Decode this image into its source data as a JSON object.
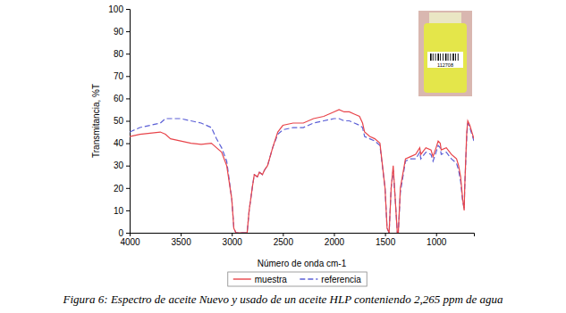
{
  "chart_data": {
    "type": "line",
    "title": "Figura 6: Espectro de aceite Nuevo y usado de un aceite HLP conteniendo 2,265 ppm de agua",
    "x_label": "Número de onda cm-1",
    "y_label": "Transmitancia, %T",
    "annotations": [
      {
        "text": "112708"
      }
    ],
    "x": [
      4000,
      3900,
      3800,
      3700,
      3650,
      3600,
      3500,
      3400,
      3300,
      3200,
      3150,
      3100,
      3050,
      3000,
      2980,
      2960,
      2850,
      2830,
      2800,
      2780,
      2750,
      2730,
      2700,
      2680,
      2650,
      2600,
      2550,
      2500,
      2400,
      2300,
      2200,
      2100,
      2000,
      1950,
      1900,
      1850,
      1800,
      1750,
      1720,
      1700,
      1650,
      1600,
      1550,
      1500,
      1480,
      1460,
      1440,
      1420,
      1400,
      1380,
      1370,
      1350,
      1300,
      1250,
      1200,
      1160,
      1150,
      1100,
      1050,
      1030,
      1000,
      980,
      960,
      950,
      900,
      850,
      800,
      780,
      760,
      740,
      725,
      720,
      700,
      690,
      670,
      650,
      630
    ],
    "series": [
      {
        "name": "muestra",
        "color": "#e8444a",
        "line_style": "solid",
        "values": [
          43,
          44,
          44.5,
          45,
          44,
          42,
          41,
          40,
          39.5,
          40,
          38,
          36,
          30,
          15,
          2,
          0,
          0,
          10,
          20,
          26,
          25,
          27,
          26,
          28,
          30,
          38,
          45,
          48,
          49,
          49,
          51,
          52,
          54,
          55,
          54,
          54,
          53,
          52,
          49,
          45,
          43,
          42,
          40,
          20,
          2,
          0,
          20,
          30,
          15,
          0,
          0,
          20,
          33,
          34,
          35,
          38,
          35,
          38,
          37,
          34,
          38,
          41,
          40,
          37,
          38,
          35,
          33,
          30,
          25,
          15,
          10,
          20,
          45,
          50,
          48,
          45,
          42
        ]
      },
      {
        "name": "referencia",
        "color": "#5b5fd6",
        "line_style": "dashed",
        "values": [
          45,
          47,
          48,
          49,
          51,
          51,
          51,
          50,
          49,
          47,
          42,
          38,
          32,
          15,
          2,
          0,
          0,
          10,
          20,
          26,
          25,
          27,
          26,
          28,
          30,
          38,
          44,
          46,
          47,
          47,
          49,
          50,
          51,
          51,
          50,
          50,
          49,
          48,
          47,
          43,
          42,
          41,
          39,
          20,
          2,
          0,
          20,
          28,
          15,
          0,
          0,
          18,
          32,
          33,
          33,
          36,
          33,
          36,
          35,
          32,
          36,
          39,
          38,
          35,
          36,
          33,
          31,
          28,
          23,
          14,
          11,
          20,
          43,
          49,
          47,
          44,
          41
        ]
      }
    ],
    "xlim": [
      4000,
      630
    ],
    "xticks": [
      4000,
      3500,
      3000,
      2500,
      2000,
      1500,
      1000
    ],
    "ylim": [
      0,
      100
    ],
    "yticks": [
      0,
      10,
      20,
      30,
      40,
      50,
      60,
      70,
      80,
      90,
      100
    ],
    "grid": false,
    "legend": "bottom"
  }
}
